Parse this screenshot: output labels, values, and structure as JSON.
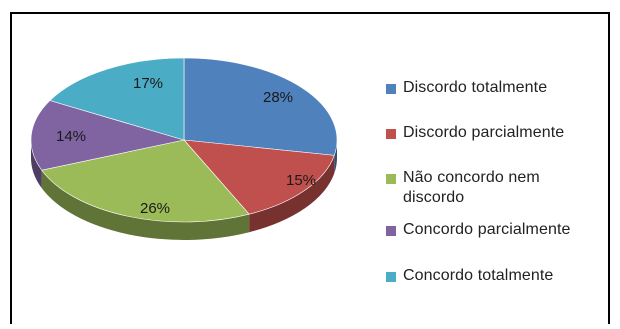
{
  "chart_data": {
    "type": "pie",
    "labels": [
      "Discordo totalmente",
      "Discordo parcialmente",
      "Não concordo nem discordo",
      "Concordo parcialmente",
      "Concordo totalmente"
    ],
    "values": [
      28,
      15,
      26,
      14,
      17
    ],
    "value_labels": [
      "28%",
      "15%",
      "26%",
      "14%",
      "17%"
    ],
    "colors": [
      "#4F81BD",
      "#C0504D",
      "#9BBB59",
      "#8064A2",
      "#4BACC6"
    ],
    "legend_position": "right",
    "style": "3d"
  },
  "legend": {
    "line1": "Não concordo nem",
    "line2": "discordo"
  }
}
